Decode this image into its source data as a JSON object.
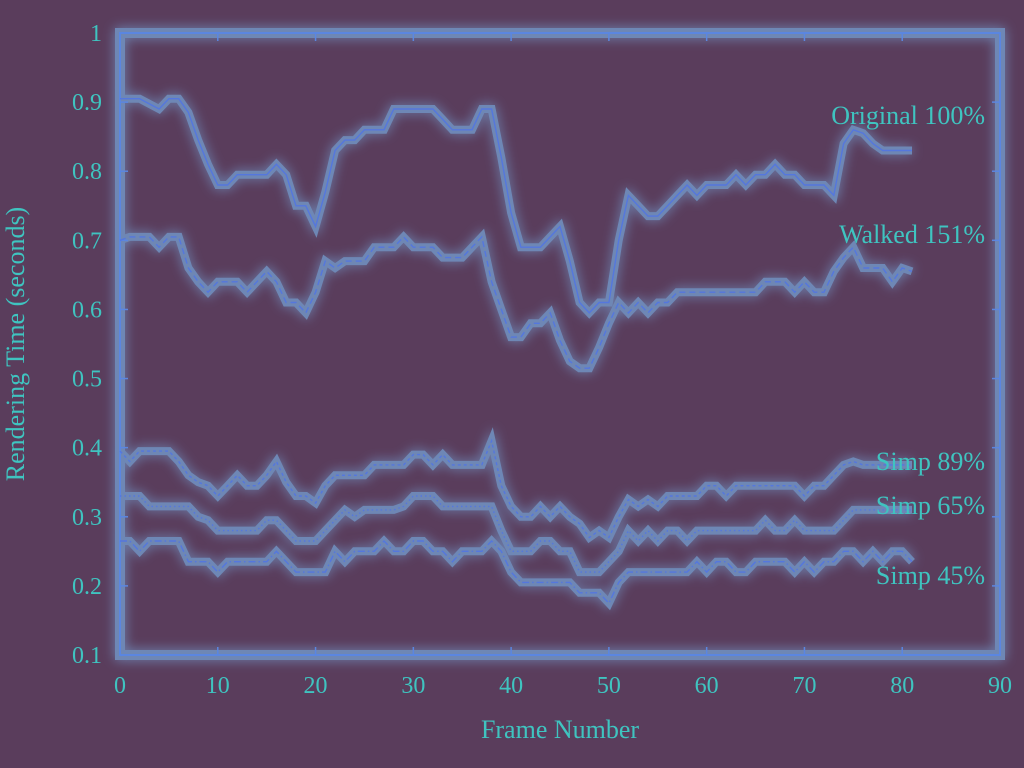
{
  "chart_data": {
    "type": "line",
    "title": "",
    "xlabel": "Frame Number",
    "ylabel": "Rendering Time (seconds)",
    "xlim": [
      0,
      90
    ],
    "ylim": [
      0.1,
      1
    ],
    "xticks": [
      0,
      10,
      20,
      30,
      40,
      50,
      60,
      70,
      80,
      90
    ],
    "yticks": [
      0.1,
      0.2,
      0.3,
      0.4,
      0.5,
      0.6,
      0.7,
      0.8,
      0.9,
      1
    ],
    "ytick_labels": [
      "0.1",
      "0.2",
      "0.3",
      "0.4",
      "0.5",
      "0.6",
      "0.7",
      "0.8",
      "0.9",
      "1"
    ],
    "grid": false,
    "legend": "inline labels at right end of each series",
    "colors": {
      "line": "#5577dd",
      "axis": "#5b86e0",
      "text": "#3fc4c0",
      "background": "#5a3d5c",
      "glow": "#7fc4ff"
    },
    "series": [
      {
        "name": "Original 100%",
        "style": "solid",
        "x": [
          0,
          2,
          4,
          5,
          6,
          7,
          8,
          9,
          10,
          11,
          12,
          13,
          14,
          15,
          16,
          17,
          18,
          19,
          20,
          21,
          22,
          23,
          24,
          25,
          26,
          27,
          28,
          29,
          30,
          31,
          32,
          33,
          34,
          35,
          36,
          37,
          38,
          39,
          40,
          41,
          42,
          43,
          44,
          45,
          46,
          47,
          48,
          49,
          50,
          51,
          52,
          53,
          54,
          55,
          56,
          57,
          58,
          59,
          60,
          61,
          62,
          63,
          64,
          65,
          66,
          67,
          68,
          69,
          70,
          71,
          72,
          73,
          74,
          75,
          76,
          77,
          78,
          79,
          80,
          81
        ],
        "y": [
          0.905,
          0.905,
          0.89,
          0.905,
          0.905,
          0.885,
          0.845,
          0.81,
          0.78,
          0.78,
          0.795,
          0.795,
          0.795,
          0.795,
          0.81,
          0.795,
          0.75,
          0.75,
          0.72,
          0.77,
          0.83,
          0.845,
          0.845,
          0.86,
          0.86,
          0.86,
          0.89,
          0.89,
          0.89,
          0.89,
          0.89,
          0.875,
          0.86,
          0.86,
          0.86,
          0.89,
          0.89,
          0.82,
          0.74,
          0.69,
          0.69,
          0.69,
          0.705,
          0.72,
          0.67,
          0.61,
          0.595,
          0.61,
          0.61,
          0.7,
          0.765,
          0.75,
          0.735,
          0.735,
          0.75,
          0.765,
          0.78,
          0.765,
          0.78,
          0.78,
          0.78,
          0.795,
          0.78,
          0.795,
          0.795,
          0.81,
          0.795,
          0.795,
          0.78,
          0.78,
          0.78,
          0.765,
          0.84,
          0.86,
          0.855,
          0.84,
          0.83,
          0.83,
          0.83,
          0.83
        ]
      },
      {
        "name": "Walked 151%",
        "style": "dashed",
        "x": [
          0,
          1,
          2,
          3,
          4,
          5,
          6,
          7,
          8,
          9,
          10,
          11,
          12,
          13,
          14,
          15,
          16,
          17,
          18,
          19,
          20,
          21,
          22,
          23,
          24,
          25,
          26,
          27,
          28,
          29,
          30,
          31,
          32,
          33,
          34,
          35,
          36,
          37,
          38,
          39,
          40,
          41,
          42,
          43,
          44,
          45,
          46,
          47,
          48,
          49,
          50,
          51,
          52,
          53,
          54,
          55,
          56,
          57,
          58,
          59,
          60,
          61,
          62,
          63,
          64,
          65,
          66,
          67,
          68,
          69,
          70,
          71,
          72,
          73,
          74,
          75,
          76,
          77,
          78,
          79,
          80,
          81
        ],
        "y": [
          0.7,
          0.705,
          0.705,
          0.705,
          0.69,
          0.705,
          0.705,
          0.66,
          0.64,
          0.625,
          0.64,
          0.64,
          0.64,
          0.625,
          0.64,
          0.655,
          0.64,
          0.61,
          0.61,
          0.595,
          0.625,
          0.67,
          0.66,
          0.67,
          0.67,
          0.67,
          0.69,
          0.69,
          0.69,
          0.705,
          0.69,
          0.69,
          0.69,
          0.675,
          0.675,
          0.675,
          0.69,
          0.705,
          0.64,
          0.6,
          0.56,
          0.56,
          0.58,
          0.58,
          0.595,
          0.555,
          0.525,
          0.515,
          0.515,
          0.545,
          0.58,
          0.61,
          0.595,
          0.61,
          0.595,
          0.61,
          0.61,
          0.625,
          0.625,
          0.625,
          0.625,
          0.625,
          0.625,
          0.625,
          0.625,
          0.625,
          0.64,
          0.64,
          0.64,
          0.625,
          0.64,
          0.625,
          0.625,
          0.655,
          0.675,
          0.69,
          0.66,
          0.66,
          0.66,
          0.64,
          0.66,
          0.655
        ]
      },
      {
        "name": "Simp 89%",
        "style": "fine-dashed",
        "x": [
          0,
          1,
          2,
          3,
          4,
          5,
          6,
          7,
          8,
          9,
          10,
          11,
          12,
          13,
          14,
          15,
          16,
          17,
          18,
          19,
          20,
          21,
          22,
          23,
          24,
          25,
          26,
          27,
          28,
          29,
          30,
          31,
          32,
          33,
          34,
          35,
          36,
          37,
          38,
          39,
          40,
          41,
          42,
          43,
          44,
          45,
          46,
          47,
          48,
          49,
          50,
          51,
          52,
          53,
          54,
          55,
          56,
          57,
          58,
          59,
          60,
          61,
          62,
          63,
          64,
          65,
          66,
          67,
          68,
          69,
          70,
          71,
          72,
          73,
          74,
          75,
          76,
          77,
          78,
          79,
          80,
          81
        ],
        "y": [
          0.395,
          0.38,
          0.395,
          0.395,
          0.395,
          0.395,
          0.38,
          0.36,
          0.35,
          0.345,
          0.33,
          0.345,
          0.36,
          0.345,
          0.345,
          0.36,
          0.38,
          0.35,
          0.33,
          0.33,
          0.32,
          0.345,
          0.36,
          0.36,
          0.36,
          0.36,
          0.375,
          0.375,
          0.375,
          0.375,
          0.39,
          0.39,
          0.375,
          0.39,
          0.375,
          0.375,
          0.375,
          0.375,
          0.41,
          0.345,
          0.315,
          0.3,
          0.3,
          0.315,
          0.3,
          0.315,
          0.3,
          0.29,
          0.27,
          0.28,
          0.27,
          0.3,
          0.325,
          0.315,
          0.325,
          0.315,
          0.33,
          0.33,
          0.33,
          0.33,
          0.345,
          0.345,
          0.33,
          0.345,
          0.345,
          0.345,
          0.345,
          0.345,
          0.345,
          0.345,
          0.33,
          0.345,
          0.345,
          0.36,
          0.375,
          0.38,
          0.375,
          0.375,
          0.375,
          0.375,
          0.375,
          0.375
        ]
      },
      {
        "name": "Simp 65%",
        "style": "dotted",
        "x": [
          0,
          1,
          2,
          3,
          4,
          5,
          6,
          7,
          8,
          9,
          10,
          11,
          12,
          13,
          14,
          15,
          16,
          17,
          18,
          19,
          20,
          21,
          22,
          23,
          24,
          25,
          26,
          27,
          28,
          29,
          30,
          31,
          32,
          33,
          34,
          35,
          36,
          37,
          38,
          39,
          40,
          41,
          42,
          43,
          44,
          45,
          46,
          47,
          48,
          49,
          50,
          51,
          52,
          53,
          54,
          55,
          56,
          57,
          58,
          59,
          60,
          61,
          62,
          63,
          64,
          65,
          66,
          67,
          68,
          69,
          70,
          71,
          72,
          73,
          74,
          75,
          76,
          77,
          78,
          79,
          80,
          81
        ],
        "y": [
          0.33,
          0.33,
          0.33,
          0.315,
          0.315,
          0.315,
          0.315,
          0.315,
          0.3,
          0.295,
          0.28,
          0.28,
          0.28,
          0.28,
          0.28,
          0.295,
          0.295,
          0.28,
          0.265,
          0.265,
          0.265,
          0.28,
          0.295,
          0.31,
          0.3,
          0.31,
          0.31,
          0.31,
          0.31,
          0.315,
          0.33,
          0.33,
          0.33,
          0.315,
          0.315,
          0.315,
          0.315,
          0.315,
          0.315,
          0.28,
          0.25,
          0.25,
          0.25,
          0.265,
          0.265,
          0.25,
          0.25,
          0.22,
          0.22,
          0.22,
          0.235,
          0.25,
          0.28,
          0.265,
          0.28,
          0.265,
          0.28,
          0.28,
          0.265,
          0.28,
          0.28,
          0.28,
          0.28,
          0.28,
          0.28,
          0.28,
          0.295,
          0.28,
          0.28,
          0.295,
          0.28,
          0.28,
          0.28,
          0.28,
          0.295,
          0.31,
          0.31,
          0.31,
          0.31,
          0.31,
          0.31,
          0.31
        ]
      },
      {
        "name": "Simp 45%",
        "style": "dash-dot",
        "x": [
          0,
          1,
          2,
          3,
          4,
          5,
          6,
          7,
          8,
          9,
          10,
          11,
          12,
          13,
          14,
          15,
          16,
          17,
          18,
          19,
          20,
          21,
          22,
          23,
          24,
          25,
          26,
          27,
          28,
          29,
          30,
          31,
          32,
          33,
          34,
          35,
          36,
          37,
          38,
          39,
          40,
          41,
          42,
          43,
          44,
          45,
          46,
          47,
          48,
          49,
          50,
          51,
          52,
          53,
          54,
          55,
          56,
          57,
          58,
          59,
          60,
          61,
          62,
          63,
          64,
          65,
          66,
          67,
          68,
          69,
          70,
          71,
          72,
          73,
          74,
          75,
          76,
          77,
          78,
          79,
          80,
          81
        ],
        "y": [
          0.265,
          0.265,
          0.25,
          0.265,
          0.265,
          0.265,
          0.265,
          0.235,
          0.235,
          0.235,
          0.22,
          0.235,
          0.235,
          0.235,
          0.235,
          0.235,
          0.25,
          0.235,
          0.22,
          0.22,
          0.22,
          0.22,
          0.25,
          0.235,
          0.25,
          0.25,
          0.25,
          0.265,
          0.25,
          0.25,
          0.265,
          0.265,
          0.25,
          0.25,
          0.235,
          0.25,
          0.25,
          0.25,
          0.265,
          0.25,
          0.22,
          0.205,
          0.205,
          0.205,
          0.205,
          0.205,
          0.205,
          0.19,
          0.19,
          0.19,
          0.175,
          0.205,
          0.22,
          0.22,
          0.22,
          0.22,
          0.22,
          0.22,
          0.22,
          0.235,
          0.22,
          0.235,
          0.235,
          0.22,
          0.22,
          0.235,
          0.235,
          0.235,
          0.235,
          0.22,
          0.235,
          0.22,
          0.235,
          0.235,
          0.25,
          0.25,
          0.235,
          0.25,
          0.235,
          0.25,
          0.25,
          0.235
        ]
      }
    ]
  }
}
